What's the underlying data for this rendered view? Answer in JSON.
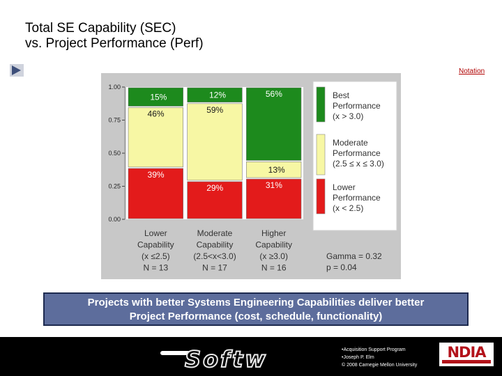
{
  "title": {
    "line1": "Total SE Capability (SEC)",
    "line2": "vs. Project Performance (Perf)"
  },
  "notation_link": "Notation",
  "colors": {
    "best": "#1d8a1d",
    "moderate": "#f7f7a4",
    "lower": "#e31b1b",
    "banner": "#5d6d9c"
  },
  "chart_data": {
    "type": "bar",
    "subtype": "stacked-mosaic",
    "y_ticks": [
      "0.00",
      "0.25",
      "0.50",
      "0.75",
      "1.00"
    ],
    "ylim": [
      0,
      1
    ],
    "categories": [
      {
        "lines": [
          "Lower",
          "Capability",
          "(x ≤2.5)",
          "N = 13"
        ]
      },
      {
        "lines": [
          "Moderate",
          "Capability",
          "(2.5<x<3.0)",
          "N = 17"
        ]
      },
      {
        "lines": [
          "Higher",
          "Capability",
          "(x ≥3.0)",
          "N = 16"
        ]
      }
    ],
    "series": [
      {
        "name": "Lower Performance",
        "color_key": "lower",
        "values": [
          0.39,
          0.29,
          0.31
        ],
        "labels": [
          "39%",
          "29%",
          "31%"
        ]
      },
      {
        "name": "Moderate Performance",
        "color_key": "moderate",
        "values": [
          0.46,
          0.59,
          0.13
        ],
        "labels": [
          "46%",
          "59%",
          "13%"
        ]
      },
      {
        "name": "Best Performance",
        "color_key": "best",
        "values": [
          0.15,
          0.12,
          0.56
        ],
        "labels": [
          "15%",
          "12%",
          "56%"
        ]
      }
    ],
    "legend": [
      {
        "color_key": "best",
        "lines": [
          "Best",
          "Performance",
          "(x > 3.0)"
        ]
      },
      {
        "color_key": "moderate",
        "lines": [
          "Moderate",
          "Performance",
          "(2.5 ≤ x ≤ 3.0)"
        ]
      },
      {
        "color_key": "lower",
        "lines": [
          "Lower",
          "Performance",
          "(x < 2.5)"
        ]
      }
    ],
    "stats": [
      "Gamma = 0.32",
      "p = 0.04"
    ]
  },
  "banner": {
    "line1": "Projects with better Systems Engineering Capabilities deliver better",
    "line2": "Project Performance (cost, schedule, functionality)"
  },
  "footer": {
    "brand_word": "Softw",
    "credits": [
      "•Acquisition Support Program",
      "•Joseph P. Elm",
      "© 2008 Carnegie Mellon University"
    ],
    "logo_text": "NDIA"
  }
}
